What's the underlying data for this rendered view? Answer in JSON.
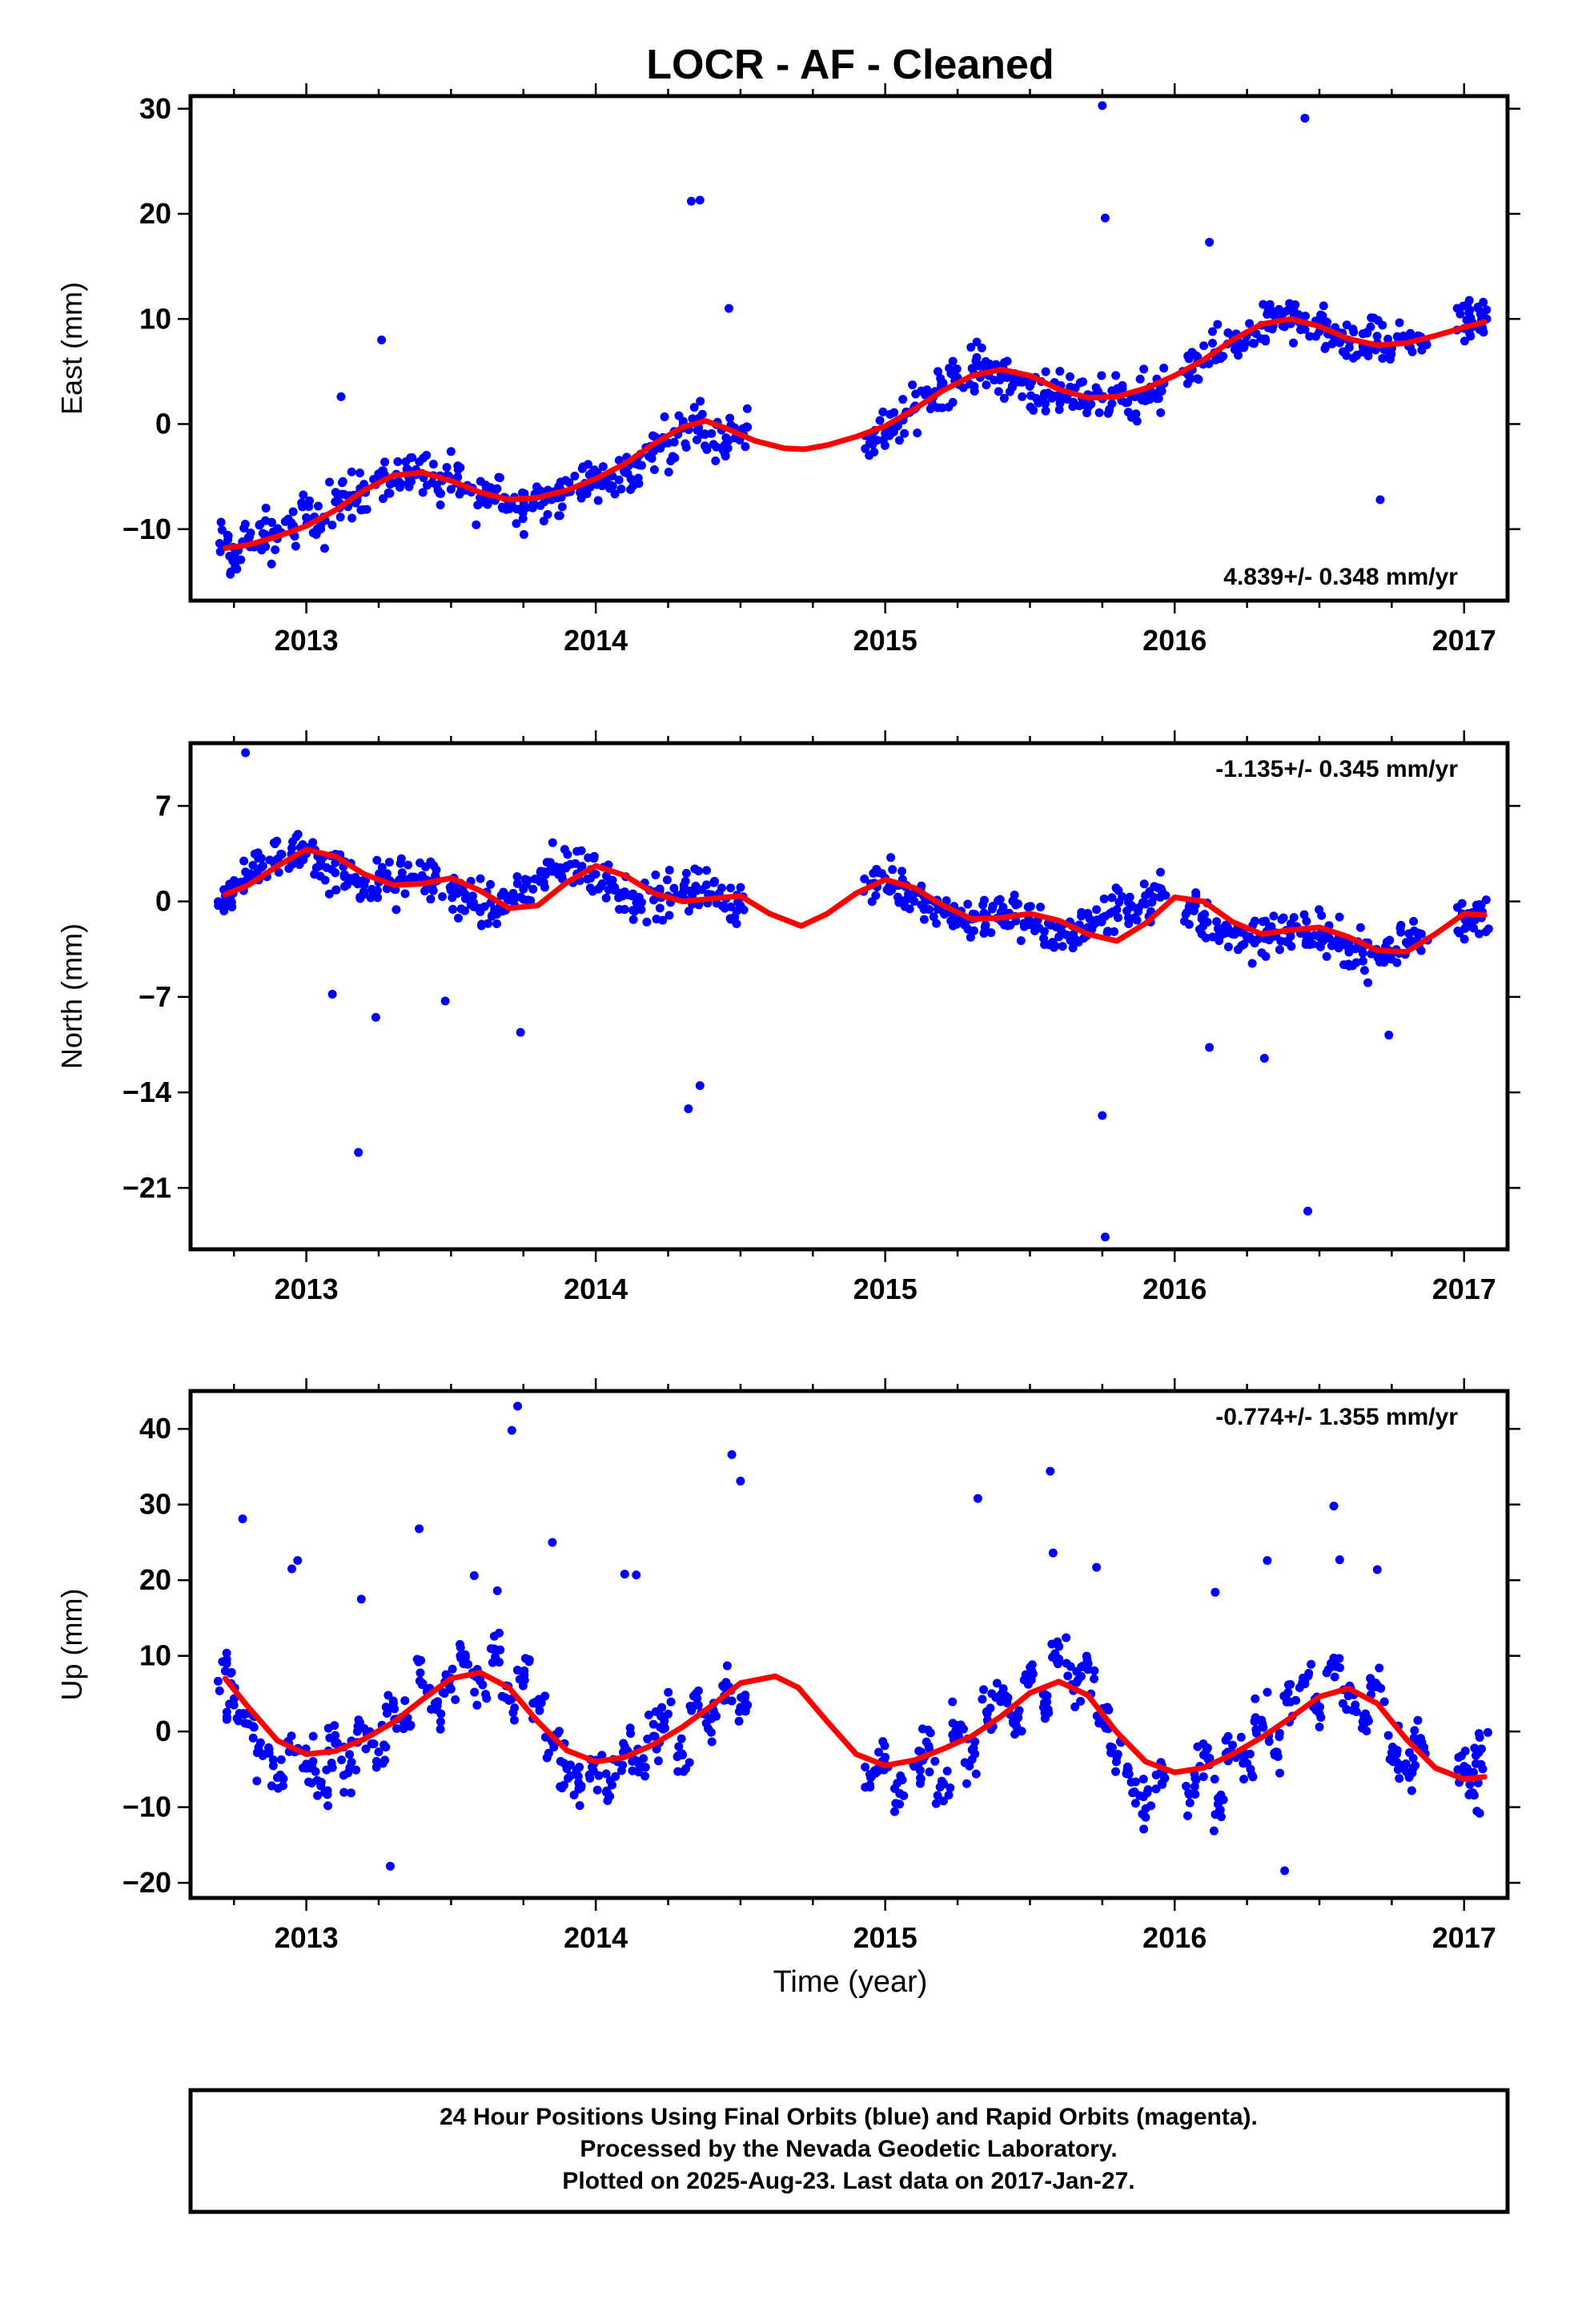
{
  "title": "LOCR  - AF - Cleaned",
  "colors": {
    "points": "#0000ff",
    "fit": "#ff0000",
    "frame": "#000000"
  },
  "xaxis": {
    "label": "Time (year)",
    "range": [
      2012.6,
      2017.15
    ],
    "ticks": [
      "2013",
      "2014",
      "2015",
      "2016",
      "2017"
    ]
  },
  "chart_data": [
    {
      "type": "scatter",
      "ylabel": "East (mm)",
      "ylim": [
        -16.8,
        31.2
      ],
      "yticks": [
        "30",
        "20",
        "10",
        "0",
        "−10"
      ],
      "rate_text": "4.839+/- 0.348 mm/yr",
      "rate_position": "bottom-right",
      "series": [
        {
          "x": [
            2012.72,
            2012.75,
            2012.8,
            2012.85,
            2012.9,
            2012.95,
            2013.0,
            2013.05,
            2013.1,
            2013.15,
            2013.2,
            2013.25,
            2013.3,
            2013.35,
            2013.4,
            2013.45,
            2013.5,
            2013.55,
            2013.6,
            2013.65,
            2013.7,
            2013.75,
            2013.8,
            2013.85,
            2013.9,
            2013.95,
            2014.0,
            2014.05,
            2014.1,
            2014.15,
            2014.2,
            2014.25,
            2014.3,
            2014.35,
            2014.4,
            2014.45,
            2014.5,
            2014.95,
            2015.0,
            2015.05,
            2015.1,
            2015.15,
            2015.2,
            2015.25,
            2015.3,
            2015.35,
            2015.4,
            2015.45,
            2015.5,
            2015.55,
            2015.6,
            2015.65,
            2015.7,
            2015.75,
            2015.8,
            2015.85,
            2015.9,
            2015.95,
            2016.05,
            2016.1,
            2016.15,
            2016.2,
            2016.25,
            2016.3,
            2016.35,
            2016.4,
            2016.45,
            2016.5,
            2016.55,
            2016.6,
            2016.65,
            2016.7,
            2016.75,
            2016.8,
            2016.85,
            2017.0,
            2017.03,
            2017.06
          ],
          "y": [
            -11.5,
            -12.8,
            -11.2,
            -10.4,
            -10.9,
            -9.8,
            -8.9,
            -9.6,
            -7.4,
            -6.8,
            -6.1,
            -4.9,
            -5.6,
            -4.3,
            -4.7,
            -5.8,
            -5.2,
            -6.3,
            -7.0,
            -6.5,
            -7.4,
            -7.8,
            -6.8,
            -7.1,
            -6.5,
            -5.9,
            -5.4,
            -5.8,
            -4.6,
            -3.9,
            -2.6,
            -1.8,
            -0.4,
            0.2,
            -0.9,
            -1.3,
            -0.6,
            -1.5,
            -0.9,
            0.4,
            1.6,
            2.8,
            3.9,
            4.4,
            5.3,
            5.1,
            4.7,
            4.0,
            3.6,
            2.9,
            2.5,
            2.1,
            2.8,
            2.4,
            3.1,
            2.6,
            2.9,
            3.4,
            4.6,
            5.9,
            6.7,
            7.8,
            8.6,
            9.4,
            10.1,
            9.7,
            9.0,
            8.8,
            8.3,
            8.0,
            7.4,
            7.7,
            7.2,
            7.9,
            8.3,
            9.1,
            9.6,
            9.9
          ]
        },
        {
          "x": [
            2013.12,
            2013.26,
            2014.33,
            2014.36,
            2014.46,
            2015.75,
            2015.76,
            2016.12,
            2016.45,
            2016.71
          ],
          "y": [
            2.6,
            8.0,
            21.2,
            21.3,
            11.0,
            30.3,
            19.6,
            17.3,
            29.1,
            -7.2
          ]
        }
      ],
      "fit": {
        "x": [
          2012.72,
          2012.8,
          2012.9,
          2013.0,
          2013.1,
          2013.2,
          2013.3,
          2013.4,
          2013.5,
          2013.6,
          2013.7,
          2013.8,
          2013.9,
          2014.0,
          2014.1,
          2014.2,
          2014.3,
          2014.38,
          2014.45,
          2014.55,
          2014.65,
          2014.72,
          2014.8,
          2014.9,
          2015.0,
          2015.1,
          2015.2,
          2015.3,
          2015.4,
          2015.5,
          2015.6,
          2015.7,
          2015.8,
          2015.9,
          2016.0,
          2016.1,
          2016.2,
          2016.3,
          2016.4,
          2016.5,
          2016.6,
          2016.7,
          2016.8,
          2016.9,
          2017.0,
          2017.07
        ],
        "y": [
          -11.8,
          -11.5,
          -10.7,
          -9.7,
          -8.2,
          -6.3,
          -4.9,
          -4.6,
          -5.4,
          -6.5,
          -7.2,
          -7.0,
          -6.3,
          -5.2,
          -3.8,
          -1.9,
          -0.3,
          0.3,
          -0.4,
          -1.6,
          -2.3,
          -2.4,
          -2.0,
          -1.2,
          -0.2,
          1.4,
          3.2,
          4.6,
          5.2,
          4.6,
          3.3,
          2.5,
          2.6,
          3.4,
          4.6,
          6.1,
          8.0,
          9.5,
          10.0,
          9.3,
          8.1,
          7.5,
          7.7,
          8.4,
          9.2,
          9.7
        ]
      }
    },
    {
      "type": "scatter",
      "ylabel": "North (mm)",
      "ylim": [
        -25.5,
        11.6
      ],
      "yticks": [
        "7",
        "0",
        "−7",
        "−14",
        "−21"
      ],
      "rate_text": "-1.135+/- 0.345 mm/yr",
      "rate_position": "top-right",
      "series": [
        {
          "x": [
            2012.72,
            2012.75,
            2012.8,
            2012.85,
            2012.9,
            2012.95,
            2013.0,
            2013.05,
            2013.1,
            2013.15,
            2013.2,
            2013.25,
            2013.3,
            2013.35,
            2013.4,
            2013.45,
            2013.5,
            2013.55,
            2013.6,
            2013.65,
            2013.7,
            2013.75,
            2013.8,
            2013.85,
            2013.9,
            2013.95,
            2014.0,
            2014.05,
            2014.1,
            2014.15,
            2014.2,
            2014.25,
            2014.3,
            2014.35,
            2014.4,
            2014.45,
            2014.5,
            2014.95,
            2015.0,
            2015.05,
            2015.1,
            2015.15,
            2015.2,
            2015.25,
            2015.3,
            2015.35,
            2015.4,
            2015.45,
            2015.5,
            2015.55,
            2015.6,
            2015.65,
            2015.7,
            2015.75,
            2015.8,
            2015.85,
            2015.9,
            2015.95,
            2016.05,
            2016.1,
            2016.15,
            2016.2,
            2016.25,
            2016.3,
            2016.35,
            2016.4,
            2016.45,
            2016.5,
            2016.55,
            2016.6,
            2016.65,
            2016.7,
            2016.75,
            2016.8,
            2016.85,
            2017.0,
            2017.03,
            2017.06
          ],
          "y": [
            0.4,
            0.9,
            1.8,
            2.6,
            3.1,
            3.9,
            3.5,
            2.9,
            2.1,
            1.7,
            1.2,
            1.4,
            1.1,
            1.6,
            1.9,
            1.5,
            0.8,
            0.2,
            -0.5,
            -0.6,
            0.1,
            0.9,
            1.6,
            2.2,
            2.6,
            2.5,
            2.0,
            1.4,
            0.7,
            0.3,
            0.1,
            0.4,
            0.6,
            0.8,
            0.5,
            0.2,
            -0.3,
            1.3,
            1.7,
            1.2,
            0.6,
            0.1,
            -0.6,
            -1.1,
            -1.3,
            -1.0,
            -0.8,
            -1.1,
            -1.7,
            -2.2,
            -2.6,
            -2.4,
            -1.9,
            -1.2,
            -0.6,
            -0.4,
            -0.2,
            0.3,
            -0.4,
            -1.3,
            -2.0,
            -2.4,
            -2.6,
            -2.5,
            -2.3,
            -2.2,
            -2.3,
            -2.6,
            -3.0,
            -3.4,
            -3.8,
            -4.0,
            -3.7,
            -3.0,
            -2.4,
            -1.2,
            -0.8,
            -1.2
          ]
        },
        {
          "x": [
            2012.79,
            2013.09,
            2013.18,
            2013.24,
            2013.48,
            2013.74,
            2014.32,
            2014.36,
            2015.75,
            2015.76,
            2016.12,
            2016.31,
            2016.46,
            2016.74
          ],
          "y": [
            10.9,
            -6.8,
            -18.4,
            -8.5,
            -7.3,
            -9.6,
            -15.2,
            -13.5,
            -15.7,
            -24.6,
            -10.7,
            -11.5,
            -22.7,
            -9.8
          ]
        }
      ],
      "fit": {
        "x": [
          2012.72,
          2012.8,
          2012.9,
          2013.0,
          2013.1,
          2013.2,
          2013.3,
          2013.4,
          2013.5,
          2013.6,
          2013.7,
          2013.8,
          2013.9,
          2014.0,
          2014.1,
          2014.2,
          2014.3,
          2014.4,
          2014.5,
          2014.6,
          2014.71,
          2014.8,
          2014.9,
          2015.0,
          2015.1,
          2015.2,
          2015.3,
          2015.4,
          2015.5,
          2015.6,
          2015.7,
          2015.8,
          2015.9,
          2016.0,
          2016.1,
          2016.2,
          2016.3,
          2016.4,
          2016.5,
          2016.6,
          2016.7,
          2016.8,
          2016.9,
          2017.0,
          2017.07
        ],
        "y": [
          0.5,
          1.2,
          2.6,
          3.8,
          3.3,
          2.0,
          1.2,
          1.3,
          1.7,
          0.8,
          -0.5,
          -0.3,
          1.4,
          2.6,
          1.9,
          0.6,
          0.0,
          0.2,
          0.4,
          -0.9,
          -1.8,
          -0.9,
          0.6,
          1.6,
          1.0,
          -0.3,
          -1.3,
          -1.2,
          -0.9,
          -1.4,
          -2.4,
          -2.9,
          -1.6,
          0.3,
          0.0,
          -1.5,
          -2.4,
          -2.1,
          -1.9,
          -2.6,
          -3.6,
          -3.7,
          -2.4,
          -0.9,
          -1.0
        ]
      }
    },
    {
      "type": "scatter",
      "ylabel": "Up (mm)",
      "ylim": [
        -22.0,
        45.0
      ],
      "yticks": [
        "40",
        "30",
        "20",
        "10",
        "0",
        "−10",
        "−20"
      ],
      "rate_text": "-0.774+/- 1.355 mm/yr",
      "rate_position": "top-right",
      "series": [
        {
          "x": [
            2012.72,
            2012.75,
            2012.8,
            2012.85,
            2012.9,
            2012.95,
            2013.0,
            2013.05,
            2013.1,
            2013.15,
            2013.2,
            2013.25,
            2013.3,
            2013.35,
            2013.4,
            2013.45,
            2013.5,
            2013.55,
            2013.6,
            2013.65,
            2013.7,
            2013.75,
            2013.8,
            2013.85,
            2013.9,
            2013.95,
            2014.0,
            2014.05,
            2014.1,
            2014.15,
            2014.2,
            2014.25,
            2014.3,
            2014.35,
            2014.4,
            2014.45,
            2014.5,
            2014.95,
            2015.0,
            2015.05,
            2015.1,
            2015.15,
            2015.2,
            2015.25,
            2015.3,
            2015.35,
            2015.4,
            2015.45,
            2015.5,
            2015.55,
            2015.6,
            2015.65,
            2015.7,
            2015.75,
            2015.8,
            2015.85,
            2015.9,
            2015.95,
            2016.05,
            2016.1,
            2016.15,
            2016.2,
            2016.25,
            2016.3,
            2016.35,
            2016.4,
            2016.45,
            2016.5,
            2016.55,
            2016.6,
            2016.65,
            2016.7,
            2016.75,
            2016.8,
            2016.85,
            2017.0,
            2017.03,
            2017.06
          ],
          "y": [
            8.0,
            3.5,
            1.0,
            -3.2,
            -6.1,
            -2.4,
            -4.3,
            -7.2,
            -1.6,
            -4.8,
            0.4,
            -2.7,
            3.1,
            1.8,
            6.2,
            2.9,
            5.6,
            9.8,
            6.7,
            10.9,
            4.1,
            7.3,
            3.6,
            -1.4,
            -4.9,
            -7.2,
            -3.8,
            -6.5,
            -2.0,
            -4.4,
            -0.6,
            2.3,
            -3.1,
            4.4,
            1.7,
            6.5,
            3.2,
            -6.1,
            -3.4,
            -8.2,
            -4.6,
            -1.9,
            -6.8,
            0.8,
            -3.7,
            2.6,
            4.9,
            1.2,
            7.1,
            3.8,
            9.6,
            5.4,
            8.2,
            2.1,
            -3.4,
            -6.7,
            -10.2,
            -5.5,
            -8.3,
            -3.1,
            -9.6,
            -1.8,
            -4.2,
            1.5,
            -2.7,
            3.9,
            6.3,
            2.4,
            8.6,
            4.7,
            1.3,
            6.1,
            -2.8,
            -5.3,
            -0.9,
            -4.6,
            -8.1,
            -2.3
          ]
        },
        {
          "x": [
            2012.78,
            2012.95,
            2012.97,
            2013.19,
            2013.29,
            2013.39,
            2013.58,
            2013.66,
            2013.71,
            2013.73,
            2013.85,
            2014.1,
            2014.14,
            2014.47,
            2014.5,
            2015.32,
            2015.57,
            2015.58,
            2015.73,
            2016.14,
            2016.32,
            2016.38,
            2016.55,
            2016.57,
            2016.7
          ],
          "y": [
            28.1,
            21.5,
            22.6,
            17.5,
            -17.8,
            26.8,
            20.6,
            18.6,
            39.8,
            43.0,
            25.0,
            20.8,
            20.7,
            36.6,
            33.1,
            30.8,
            34.4,
            23.6,
            21.7,
            18.4,
            22.6,
            -18.4,
            29.8,
            22.7,
            21.4
          ]
        }
      ],
      "fit": {
        "x": [
          2012.72,
          2012.8,
          2012.9,
          2013.0,
          2013.1,
          2013.2,
          2013.3,
          2013.4,
          2013.5,
          2013.6,
          2013.7,
          2013.8,
          2013.9,
          2014.0,
          2014.1,
          2014.2,
          2014.3,
          2014.4,
          2014.5,
          2014.62,
          2014.7,
          2014.8,
          2014.9,
          2015.0,
          2015.1,
          2015.2,
          2015.3,
          2015.4,
          2015.5,
          2015.6,
          2015.7,
          2015.8,
          2015.9,
          2016.0,
          2016.1,
          2016.2,
          2016.3,
          2016.4,
          2016.5,
          2016.6,
          2016.7,
          2016.8,
          2016.9,
          2017.0,
          2017.07
        ],
        "y": [
          7.0,
          3.2,
          -1.2,
          -3.0,
          -2.6,
          -1.0,
          1.2,
          4.2,
          7.0,
          7.8,
          5.8,
          1.3,
          -2.5,
          -4.0,
          -3.4,
          -1.7,
          0.6,
          3.4,
          6.4,
          7.3,
          5.8,
          1.3,
          -3.0,
          -4.5,
          -3.8,
          -2.3,
          -0.6,
          2.0,
          5.1,
          6.6,
          4.8,
          -0.1,
          -4.0,
          -5.4,
          -4.8,
          -3.0,
          -0.8,
          1.8,
          4.6,
          5.7,
          3.7,
          -1.0,
          -4.8,
          -6.3,
          -6.0
        ]
      }
    }
  ],
  "footer": {
    "lines": [
      "24 Hour Positions Using Final Orbits (blue) and Rapid Orbits (magenta).",
      "Processed by the Nevada Geodetic Laboratory.",
      "Plotted on 2025-Aug-23. Last data on 2017-Jan-27."
    ]
  }
}
